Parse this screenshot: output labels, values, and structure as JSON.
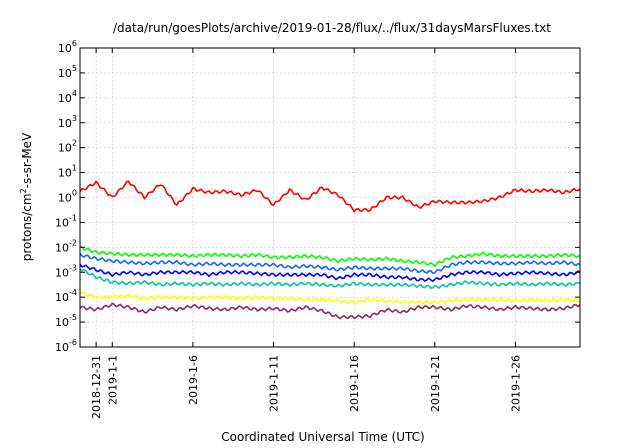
{
  "chart_data": {
    "type": "line",
    "title": "/data/run/goesPlots/archive/2019-01-28/flux/../flux/31daysMarsFluxes.txt",
    "xlabel": "Coordinated Universal Time (UTC)",
    "ylabel_base": "protons/cm",
    "ylabel_sup": "2",
    "ylabel_rest": "-s-sr-MeV",
    "y_scale": "log",
    "ylim": [
      1e-06,
      1000000.0
    ],
    "y_tick_exponents": [
      "-6",
      "-5",
      "-4",
      "-3",
      "-2",
      "-1",
      "0",
      "1",
      "2",
      "3",
      "4",
      "5",
      "6"
    ],
    "xlim_days": [
      0,
      31
    ],
    "x_ticks": [
      {
        "label": "2018-12-31",
        "day": 1
      },
      {
        "label": "2019-1-1",
        "day": 2
      },
      {
        "label": "2019-1-6",
        "day": 7
      },
      {
        "label": "2019-1-11",
        "day": 12
      },
      {
        "label": "2019-1-16",
        "day": 17
      },
      {
        "label": "2019-1-21",
        "day": 22
      },
      {
        "label": "2019-1-26",
        "day": 27
      }
    ],
    "grid": true,
    "legend": "none",
    "series": [
      {
        "color": "#ff0000",
        "log_values": [
          0.25,
          0.6,
          0.0,
          0.65,
          0.0,
          0.55,
          -0.3,
          0.35,
          0.2,
          0.25,
          0.1,
          0.3,
          -0.3,
          0.3,
          -0.1,
          0.4,
          0.1,
          -0.5,
          -0.5,
          0.0,
          0.0,
          -0.4,
          -0.15,
          -0.2,
          -0.2,
          -0.15,
          0.0,
          0.3,
          0.25,
          0.3,
          0.2,
          0.35
        ]
      },
      {
        "color": "#00ff00",
        "log_values": [
          -2.0,
          -2.2,
          -2.25,
          -2.3,
          -2.3,
          -2.3,
          -2.3,
          -2.35,
          -2.3,
          -2.3,
          -2.35,
          -2.3,
          -2.4,
          -2.4,
          -2.35,
          -2.4,
          -2.55,
          -2.45,
          -2.5,
          -2.45,
          -2.55,
          -2.6,
          -2.7,
          -2.4,
          -2.35,
          -2.25,
          -2.35,
          -2.35,
          -2.35,
          -2.35,
          -2.3,
          -2.35
        ]
      },
      {
        "color": "#1565ff",
        "log_values": [
          -2.3,
          -2.45,
          -2.55,
          -2.6,
          -2.65,
          -2.6,
          -2.6,
          -2.7,
          -2.65,
          -2.7,
          -2.7,
          -2.7,
          -2.7,
          -2.8,
          -2.75,
          -2.8,
          -2.9,
          -2.8,
          -2.85,
          -2.85,
          -2.85,
          -2.95,
          -3.0,
          -2.7,
          -2.6,
          -2.6,
          -2.65,
          -2.65,
          -2.6,
          -2.65,
          -2.6,
          -2.7
        ]
      },
      {
        "color": "#0000ff",
        "log_values": [
          -2.7,
          -2.9,
          -3.1,
          -3.0,
          -3.1,
          -3.0,
          -3.0,
          -3.0,
          -3.1,
          -3.0,
          -3.0,
          -3.05,
          -3.1,
          -3.1,
          -3.1,
          -3.1,
          -3.25,
          -3.1,
          -3.1,
          -3.2,
          -3.2,
          -3.3,
          -3.3,
          -3.1,
          -3.0,
          -3.0,
          -3.1,
          -3.05,
          -3.0,
          -3.05,
          -3.1,
          -3.0
        ]
      },
      {
        "color": "#00c8a0",
        "log_values": [
          -2.85,
          -3.2,
          -3.4,
          -3.45,
          -3.4,
          -3.5,
          -3.45,
          -3.5,
          -3.45,
          -3.5,
          -3.45,
          -3.5,
          -3.45,
          -3.5,
          -3.45,
          -3.5,
          -3.55,
          -3.45,
          -3.5,
          -3.5,
          -3.5,
          -3.55,
          -3.6,
          -3.5,
          -3.4,
          -3.45,
          -3.5,
          -3.45,
          -3.5,
          -3.45,
          -3.5,
          -3.45
        ]
      },
      {
        "color": "#ffff00",
        "log_values": [
          -3.8,
          -4.0,
          -4.0,
          -3.95,
          -4.05,
          -4.0,
          -4.0,
          -4.05,
          -4.0,
          -4.0,
          -4.05,
          -4.0,
          -4.05,
          -4.05,
          -4.1,
          -4.1,
          -4.15,
          -4.2,
          -4.1,
          -4.15,
          -4.2,
          -4.2,
          -4.2,
          -4.15,
          -4.1,
          -4.1,
          -4.1,
          -4.15,
          -4.1,
          -4.15,
          -4.1,
          -4.15
        ]
      },
      {
        "color": "#8b2a6a",
        "log_values": [
          -4.4,
          -4.5,
          -4.3,
          -4.4,
          -4.6,
          -4.4,
          -4.5,
          -4.35,
          -4.45,
          -4.5,
          -4.4,
          -4.5,
          -4.45,
          -4.55,
          -4.4,
          -4.55,
          -4.8,
          -4.8,
          -4.75,
          -4.5,
          -4.6,
          -4.4,
          -4.4,
          -4.5,
          -4.35,
          -4.4,
          -4.5,
          -4.4,
          -4.45,
          -4.5,
          -4.45,
          -4.3
        ]
      }
    ]
  }
}
